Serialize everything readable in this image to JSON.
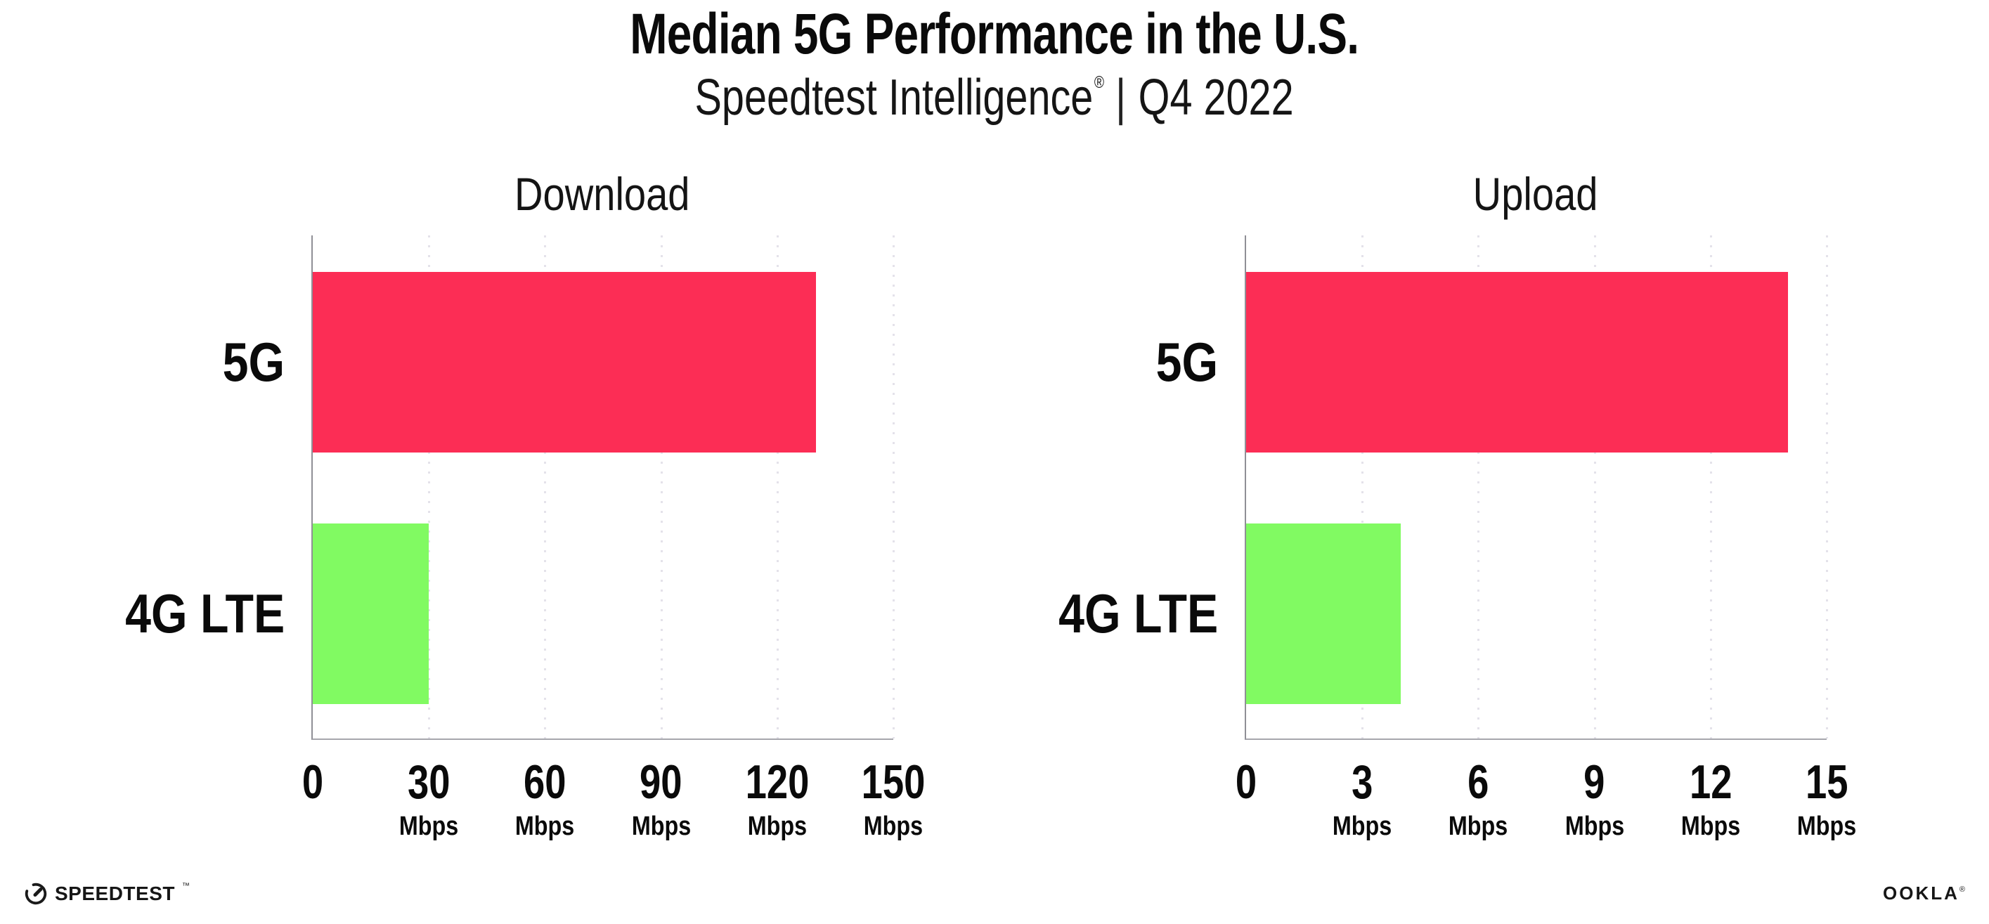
{
  "header": {
    "title": "Median 5G Performance in the U.S.",
    "subtitle_brand": "Speedtest Intelligence",
    "subtitle_reg": "®",
    "subtitle_separator": "|",
    "subtitle_period": "Q4 2022"
  },
  "chart_data": [
    {
      "type": "bar",
      "orientation": "horizontal",
      "title": "Download",
      "categories": [
        "5G",
        "4G LTE"
      ],
      "values": [
        130,
        30
      ],
      "unit": "Mbps",
      "xlim": [
        0,
        150
      ],
      "ticks": [
        0,
        30,
        60,
        90,
        120,
        150
      ],
      "bar_colors": [
        "#FC2D55",
        "#81FA62"
      ],
      "grid": "dotted-vertical",
      "legend": "none"
    },
    {
      "type": "bar",
      "orientation": "horizontal",
      "title": "Upload",
      "categories": [
        "5G",
        "4G LTE"
      ],
      "values": [
        14,
        4
      ],
      "unit": "Mbps",
      "xlim": [
        0,
        15
      ],
      "ticks": [
        0,
        3,
        6,
        9,
        12,
        15
      ],
      "bar_colors": [
        "#FC2D55",
        "#81FA62"
      ],
      "grid": "dotted-vertical",
      "legend": "none"
    }
  ],
  "colors": {
    "bar_5g": "#FC2D55",
    "bar_4g_lte": "#81FA62",
    "gridline": "#E4E2EA",
    "axis": "#9A9AA0",
    "text": "#0A0A0A"
  },
  "footer": {
    "speedtest_label": "SPEEDTEST",
    "speedtest_mark": "™",
    "ookla_label": "OOKLA",
    "ookla_mark": "®"
  }
}
